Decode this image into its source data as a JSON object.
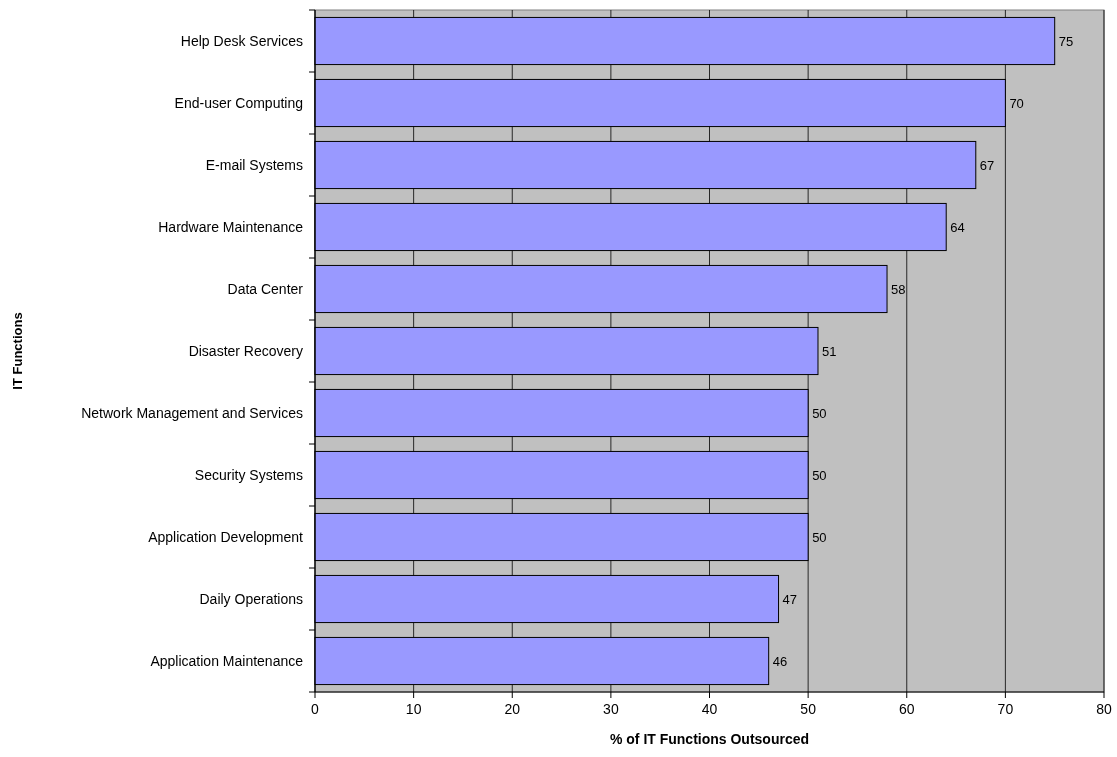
{
  "chart_data": {
    "type": "bar",
    "orientation": "horizontal",
    "xlabel": "% of IT Functions Outsourced",
    "ylabel": "IT Functions",
    "categories": [
      "Help Desk Services",
      "End-user Computing",
      "E-mail Systems",
      "Hardware Maintenance",
      "Data Center",
      "Disaster Recovery",
      "Network Management and Services",
      "Security Systems",
      "Application Development",
      "Daily Operations",
      "Application Maintenance"
    ],
    "values": [
      75,
      70,
      67,
      64,
      58,
      51,
      50,
      50,
      50,
      47,
      46
    ],
    "color": "#9999ff",
    "xlim": [
      0,
      80
    ],
    "xticks": [
      0,
      10,
      20,
      30,
      40,
      50,
      60,
      70,
      80
    ],
    "grid": "x",
    "data_labels": true
  }
}
